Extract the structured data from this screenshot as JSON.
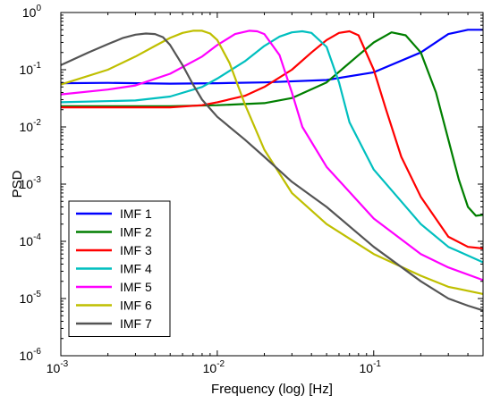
{
  "chart_data": {
    "type": "line",
    "title": "",
    "xlabel": "Frequency (log) [Hz]",
    "ylabel": "PSD",
    "x_scale": "log",
    "y_scale": "log",
    "xlim": [
      0.001,
      0.5
    ],
    "ylim": [
      1e-06,
      1
    ],
    "grid": false,
    "legend_position": "bottom-left",
    "x_ticks": [
      {
        "value": 0.001,
        "base": "10",
        "exp": "-3"
      },
      {
        "value": 0.01,
        "base": "10",
        "exp": "-2"
      },
      {
        "value": 0.1,
        "base": "10",
        "exp": "-1"
      }
    ],
    "y_ticks": [
      {
        "value": 1,
        "base": "10",
        "exp": "0"
      },
      {
        "value": 0.1,
        "base": "10",
        "exp": "-1"
      },
      {
        "value": 0.01,
        "base": "10",
        "exp": "-2"
      },
      {
        "value": 0.001,
        "base": "10",
        "exp": "-3"
      },
      {
        "value": 0.0001,
        "base": "10",
        "exp": "-4"
      },
      {
        "value": 1e-05,
        "base": "10",
        "exp": "-5"
      },
      {
        "value": 1e-06,
        "base": "10",
        "exp": "-6"
      }
    ],
    "series": [
      {
        "name": "IMF 1",
        "color": "#0000ff",
        "x": [
          0.001,
          0.002,
          0.005,
          0.01,
          0.02,
          0.05,
          0.1,
          0.2,
          0.3,
          0.4,
          0.5
        ],
        "y": [
          0.058,
          0.059,
          0.057,
          0.058,
          0.06,
          0.066,
          0.09,
          0.2,
          0.42,
          0.5,
          0.5
        ]
      },
      {
        "name": "IMF 2",
        "color": "#007f00",
        "x": [
          0.001,
          0.005,
          0.01,
          0.02,
          0.03,
          0.05,
          0.08,
          0.1,
          0.13,
          0.16,
          0.2,
          0.25,
          0.3,
          0.35,
          0.4,
          0.45,
          0.5
        ],
        "y": [
          0.023,
          0.023,
          0.024,
          0.026,
          0.032,
          0.06,
          0.18,
          0.3,
          0.45,
          0.4,
          0.2,
          0.04,
          0.006,
          0.0012,
          0.0004,
          0.00028,
          0.00029
        ]
      },
      {
        "name": "IMF 3",
        "color": "#ff0000",
        "x": [
          0.001,
          0.005,
          0.008,
          0.01,
          0.015,
          0.02,
          0.03,
          0.04,
          0.05,
          0.06,
          0.07,
          0.08,
          0.1,
          0.12,
          0.15,
          0.2,
          0.3,
          0.4,
          0.5
        ],
        "y": [
          0.022,
          0.022,
          0.024,
          0.027,
          0.035,
          0.05,
          0.1,
          0.2,
          0.33,
          0.44,
          0.47,
          0.4,
          0.1,
          0.02,
          0.003,
          0.0006,
          0.00012,
          8e-05,
          7.5e-05
        ]
      },
      {
        "name": "IMF 4",
        "color": "#00bfbf",
        "x": [
          0.001,
          0.003,
          0.005,
          0.008,
          0.01,
          0.015,
          0.02,
          0.025,
          0.03,
          0.035,
          0.04,
          0.05,
          0.06,
          0.07,
          0.1,
          0.2,
          0.3,
          0.5
        ],
        "y": [
          0.027,
          0.029,
          0.034,
          0.05,
          0.07,
          0.14,
          0.26,
          0.38,
          0.45,
          0.47,
          0.44,
          0.25,
          0.06,
          0.012,
          0.0018,
          0.0002,
          8e-05,
          4.3e-05
        ]
      },
      {
        "name": "IMF 5",
        "color": "#ff00ff",
        "x": [
          0.001,
          0.002,
          0.003,
          0.005,
          0.008,
          0.01,
          0.013,
          0.016,
          0.018,
          0.02,
          0.025,
          0.03,
          0.035,
          0.05,
          0.1,
          0.2,
          0.3,
          0.5
        ],
        "y": [
          0.037,
          0.045,
          0.053,
          0.085,
          0.17,
          0.27,
          0.42,
          0.48,
          0.47,
          0.42,
          0.18,
          0.04,
          0.01,
          0.002,
          0.00025,
          6e-05,
          3.5e-05,
          2.1e-05
        ]
      },
      {
        "name": "IMF 6",
        "color": "#bfbf00",
        "x": [
          0.001,
          0.002,
          0.003,
          0.004,
          0.005,
          0.006,
          0.007,
          0.008,
          0.009,
          0.01,
          0.012,
          0.015,
          0.02,
          0.03,
          0.05,
          0.1,
          0.2,
          0.3,
          0.5
        ],
        "y": [
          0.055,
          0.1,
          0.17,
          0.26,
          0.36,
          0.44,
          0.48,
          0.48,
          0.43,
          0.33,
          0.13,
          0.025,
          0.004,
          0.0007,
          0.0002,
          6e-05,
          2.5e-05,
          1.6e-05,
          1.2e-05
        ]
      },
      {
        "name": "IMF 7",
        "color": "#545454",
        "x": [
          0.001,
          0.0015,
          0.002,
          0.0025,
          0.003,
          0.0035,
          0.004,
          0.0045,
          0.005,
          0.006,
          0.007,
          0.008,
          0.01,
          0.015,
          0.02,
          0.03,
          0.05,
          0.1,
          0.2,
          0.3,
          0.4,
          0.5
        ],
        "y": [
          0.12,
          0.2,
          0.28,
          0.36,
          0.41,
          0.43,
          0.42,
          0.37,
          0.27,
          0.12,
          0.055,
          0.03,
          0.015,
          0.006,
          0.003,
          0.0011,
          0.0004,
          8e-05,
          2e-05,
          1e-05,
          7.5e-06,
          6.2e-06
        ]
      }
    ]
  }
}
